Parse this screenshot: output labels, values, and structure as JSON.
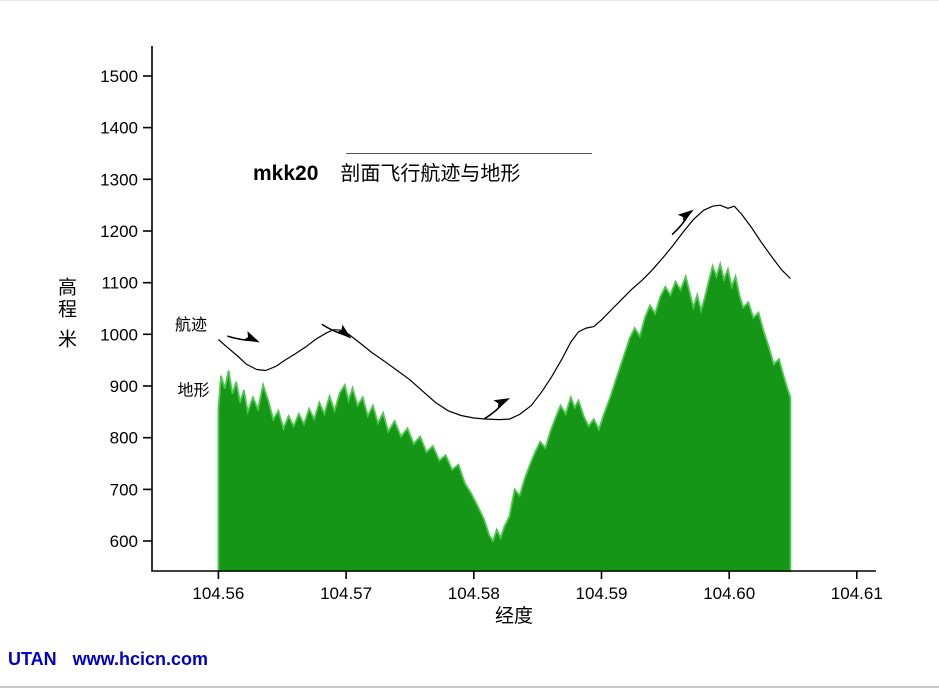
{
  "page": {
    "background": "#ffffff"
  },
  "watermark": {
    "brand": "UTAN",
    "site": "www.hcicn.com",
    "color": "#0000cc"
  },
  "chart_data": {
    "type": "area+line",
    "title": {
      "bold": "mkk20",
      "text": "剖面飞行航迹与地形"
    },
    "xlabel": "经度",
    "ylabel": "高程 米",
    "xlim": [
      104.5548,
      104.6115
    ],
    "ylim": [
      542,
      1558
    ],
    "grid": false,
    "x_ticks": [
      104.56,
      104.57,
      104.58,
      104.59,
      104.6,
      104.61
    ],
    "x_tick_labels": [
      "104.56",
      "104.57",
      "104.58",
      "104.59",
      "104.60",
      "104.61"
    ],
    "y_ticks": [
      600,
      700,
      800,
      900,
      1000,
      1100,
      1200,
      1300,
      1400,
      1500
    ],
    "axis_color": "#000000",
    "series": [
      {
        "name": "地形",
        "type": "area",
        "fill": "#169616",
        "stroke": "#4fc84f",
        "points": [
          [
            104.56,
            855
          ],
          [
            104.5602,
            920
          ],
          [
            104.5605,
            895
          ],
          [
            104.5608,
            930
          ],
          [
            104.5611,
            885
          ],
          [
            104.5614,
            908
          ],
          [
            104.5617,
            868
          ],
          [
            104.562,
            892
          ],
          [
            104.5623,
            850
          ],
          [
            104.5627,
            878
          ],
          [
            104.5631,
            855
          ],
          [
            104.5635,
            902
          ],
          [
            104.5639,
            872
          ],
          [
            104.5643,
            835
          ],
          [
            104.5647,
            852
          ],
          [
            104.5651,
            818
          ],
          [
            104.5655,
            842
          ],
          [
            104.5659,
            822
          ],
          [
            104.5663,
            846
          ],
          [
            104.5667,
            826
          ],
          [
            104.5671,
            856
          ],
          [
            104.5675,
            836
          ],
          [
            104.5679,
            868
          ],
          [
            104.5683,
            846
          ],
          [
            104.5687,
            880
          ],
          [
            104.5691,
            852
          ],
          [
            104.5695,
            886
          ],
          [
            104.5699,
            902
          ],
          [
            104.5702,
            872
          ],
          [
            104.5705,
            896
          ],
          [
            104.5709,
            862
          ],
          [
            104.5713,
            878
          ],
          [
            104.5717,
            842
          ],
          [
            104.5721,
            862
          ],
          [
            104.5725,
            828
          ],
          [
            104.5729,
            848
          ],
          [
            104.5733,
            812
          ],
          [
            104.5738,
            832
          ],
          [
            104.5743,
            802
          ],
          [
            104.5748,
            818
          ],
          [
            104.5753,
            788
          ],
          [
            104.5758,
            802
          ],
          [
            104.5763,
            772
          ],
          [
            104.5768,
            784
          ],
          [
            104.5773,
            756
          ],
          [
            104.5778,
            766
          ],
          [
            104.5783,
            738
          ],
          [
            104.5788,
            748
          ],
          [
            104.5793,
            712
          ],
          [
            104.5798,
            692
          ],
          [
            104.5803,
            668
          ],
          [
            104.5808,
            642
          ],
          [
            104.5812,
            612
          ],
          [
            104.5815,
            600
          ],
          [
            104.5818,
            622
          ],
          [
            104.5821,
            606
          ],
          [
            104.5824,
            628
          ],
          [
            104.5828,
            648
          ],
          [
            104.5832,
            700
          ],
          [
            104.5836,
            688
          ],
          [
            104.584,
            722
          ],
          [
            104.5844,
            748
          ],
          [
            104.5848,
            772
          ],
          [
            104.5852,
            792
          ],
          [
            104.5856,
            780
          ],
          [
            104.586,
            812
          ],
          [
            104.5864,
            838
          ],
          [
            104.5868,
            862
          ],
          [
            104.5872,
            846
          ],
          [
            104.5876,
            878
          ],
          [
            104.5879,
            858
          ],
          [
            104.5882,
            872
          ],
          [
            104.5886,
            842
          ],
          [
            104.589,
            822
          ],
          [
            104.5894,
            836
          ],
          [
            104.5898,
            816
          ],
          [
            104.5902,
            846
          ],
          [
            104.5906,
            872
          ],
          [
            104.591,
            902
          ],
          [
            104.5914,
            932
          ],
          [
            104.5918,
            962
          ],
          [
            104.5922,
            992
          ],
          [
            104.5926,
            1012
          ],
          [
            104.593,
            996
          ],
          [
            104.5934,
            1032
          ],
          [
            104.5938,
            1056
          ],
          [
            104.5942,
            1040
          ],
          [
            104.5946,
            1072
          ],
          [
            104.595,
            1092
          ],
          [
            104.5954,
            1076
          ],
          [
            104.5958,
            1102
          ],
          [
            104.5962,
            1086
          ],
          [
            104.5966,
            1112
          ],
          [
            104.5969,
            1082
          ],
          [
            104.5972,
            1052
          ],
          [
            104.5975,
            1076
          ],
          [
            104.5978,
            1046
          ],
          [
            104.5981,
            1072
          ],
          [
            104.5984,
            1102
          ],
          [
            104.5987,
            1132
          ],
          [
            104.599,
            1112
          ],
          [
            104.5993,
            1136
          ],
          [
            104.5996,
            1106
          ],
          [
            104.5999,
            1126
          ],
          [
            104.6002,
            1092
          ],
          [
            104.6005,
            1112
          ],
          [
            104.6008,
            1076
          ],
          [
            104.6011,
            1052
          ],
          [
            104.6015,
            1062
          ],
          [
            104.6019,
            1032
          ],
          [
            104.6023,
            1042
          ],
          [
            104.6027,
            1006
          ],
          [
            104.6031,
            976
          ],
          [
            104.6035,
            942
          ],
          [
            104.6039,
            952
          ],
          [
            104.6043,
            916
          ],
          [
            104.6046,
            892
          ],
          [
            104.6048,
            878
          ]
        ]
      },
      {
        "name": "航迹",
        "type": "line",
        "color": "#000000",
        "points": [
          [
            104.56,
            990
          ],
          [
            104.5607,
            975
          ],
          [
            104.5615,
            958
          ],
          [
            104.5622,
            942
          ],
          [
            104.563,
            932
          ],
          [
            104.5637,
            930
          ],
          [
            104.5645,
            938
          ],
          [
            104.5652,
            950
          ],
          [
            104.566,
            962
          ],
          [
            104.5668,
            975
          ],
          [
            104.5676,
            990
          ],
          [
            104.5684,
            1002
          ],
          [
            104.569,
            1009
          ],
          [
            104.5696,
            1008
          ],
          [
            104.5702,
            1000
          ],
          [
            104.571,
            985
          ],
          [
            104.572,
            965
          ],
          [
            104.573,
            948
          ],
          [
            104.574,
            930
          ],
          [
            104.575,
            912
          ],
          [
            104.576,
            890
          ],
          [
            104.577,
            868
          ],
          [
            104.578,
            852
          ],
          [
            104.579,
            843
          ],
          [
            104.58,
            838
          ],
          [
            104.581,
            836
          ],
          [
            104.582,
            835
          ],
          [
            104.5828,
            836
          ],
          [
            104.5836,
            845
          ],
          [
            104.5845,
            862
          ],
          [
            104.5853,
            888
          ],
          [
            104.5861,
            918
          ],
          [
            104.5869,
            952
          ],
          [
            104.5876,
            985
          ],
          [
            104.5882,
            1005
          ],
          [
            104.5888,
            1012
          ],
          [
            104.5894,
            1015
          ],
          [
            104.59,
            1028
          ],
          [
            104.5908,
            1048
          ],
          [
            104.5916,
            1068
          ],
          [
            104.5924,
            1088
          ],
          [
            104.5932,
            1105
          ],
          [
            104.594,
            1125
          ],
          [
            104.5948,
            1148
          ],
          [
            104.5956,
            1172
          ],
          [
            104.5964,
            1198
          ],
          [
            104.5972,
            1222
          ],
          [
            104.598,
            1240
          ],
          [
            104.5987,
            1248
          ],
          [
            104.5993,
            1250
          ],
          [
            104.5999,
            1244
          ],
          [
            104.6004,
            1248
          ],
          [
            104.601,
            1232
          ],
          [
            104.6018,
            1205
          ],
          [
            104.6026,
            1175
          ],
          [
            104.6034,
            1148
          ],
          [
            104.6041,
            1125
          ],
          [
            104.6048,
            1108
          ]
        ]
      }
    ],
    "series_labels": [
      {
        "text": "航迹",
        "x": 104.5566,
        "y": 1008
      },
      {
        "text": "地形",
        "x": 104.5568,
        "y": 882
      }
    ],
    "arrows": [
      {
        "x": 104.5631,
        "y": 986,
        "angle": 25
      },
      {
        "x": 104.5703,
        "y": 994,
        "angle": 40
      },
      {
        "x": 104.5827,
        "y": 875,
        "angle": -25
      },
      {
        "x": 104.5971,
        "y": 1239,
        "angle": -35
      }
    ]
  }
}
